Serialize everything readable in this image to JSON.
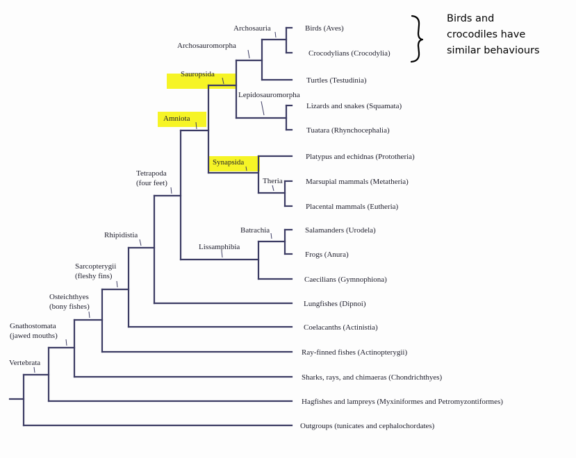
{
  "leaves": {
    "birds": "Birds (Aves)",
    "crocodylians": "Crocodylians (Crocodylia)",
    "turtles": "Turtles (Testudinia)",
    "lizards": "Lizards and snakes (Squamata)",
    "tuatara": "Tuatara (Rhynchocephalia)",
    "platypus": "Platypus and echidnas (Prototheria)",
    "marsupials": "Marsupial mammals (Metatheria)",
    "placentals": "Placental mammals (Eutheria)",
    "salamanders": "Salamanders (Urodela)",
    "frogs": "Frogs (Anura)",
    "caecilians": "Caecilians (Gymnophiona)",
    "lungfishes": "Lungfishes (Dipnoi)",
    "coelacanths": "Coelacanths (Actinistia)",
    "rayfinned": "Ray-finned fishes (Actinopterygii)",
    "sharks": "Sharks, rays, and chimaeras (Chondrichthyes)",
    "hagfishes": "Hagfishes and lampreys (Myxiniformes and Petromyzontiformes)",
    "outgroups": "Outgroups (tunicates and cephalochordates)"
  },
  "clades": {
    "archosauria": "Archosauria",
    "archosauromorpha": "Archosauromorpha",
    "sauropsida": "Sauropsida",
    "lepidosauromorpha": "Lepidosauromorpha",
    "amniota": "Amniota",
    "synapsida": "Synapsida",
    "theria": "Theria",
    "tetrapoda_1": "Tetrapoda",
    "tetrapoda_2": "(four feet)",
    "batrachia": "Batrachia",
    "lissamphibia": "Lissamphibia",
    "rhipidistia": "Rhipidistia",
    "sarcopterygii_1": "Sarcopterygii",
    "sarcopterygii_2": "(fleshy fins)",
    "osteichthyes_1": "Osteichthyes",
    "osteichthyes_2": "(bony fishes)",
    "gnathostomata_1": "Gnathostomata",
    "gnathostomata_2": "(jawed mouths)",
    "vertebrata": "Vertebrata"
  },
  "annotation": {
    "line1": "Birds and",
    "line2": "crocodiles have",
    "line3": "similar behaviours"
  },
  "colors": {
    "highlight": "#f5f200",
    "branch": "#3b3b63"
  }
}
